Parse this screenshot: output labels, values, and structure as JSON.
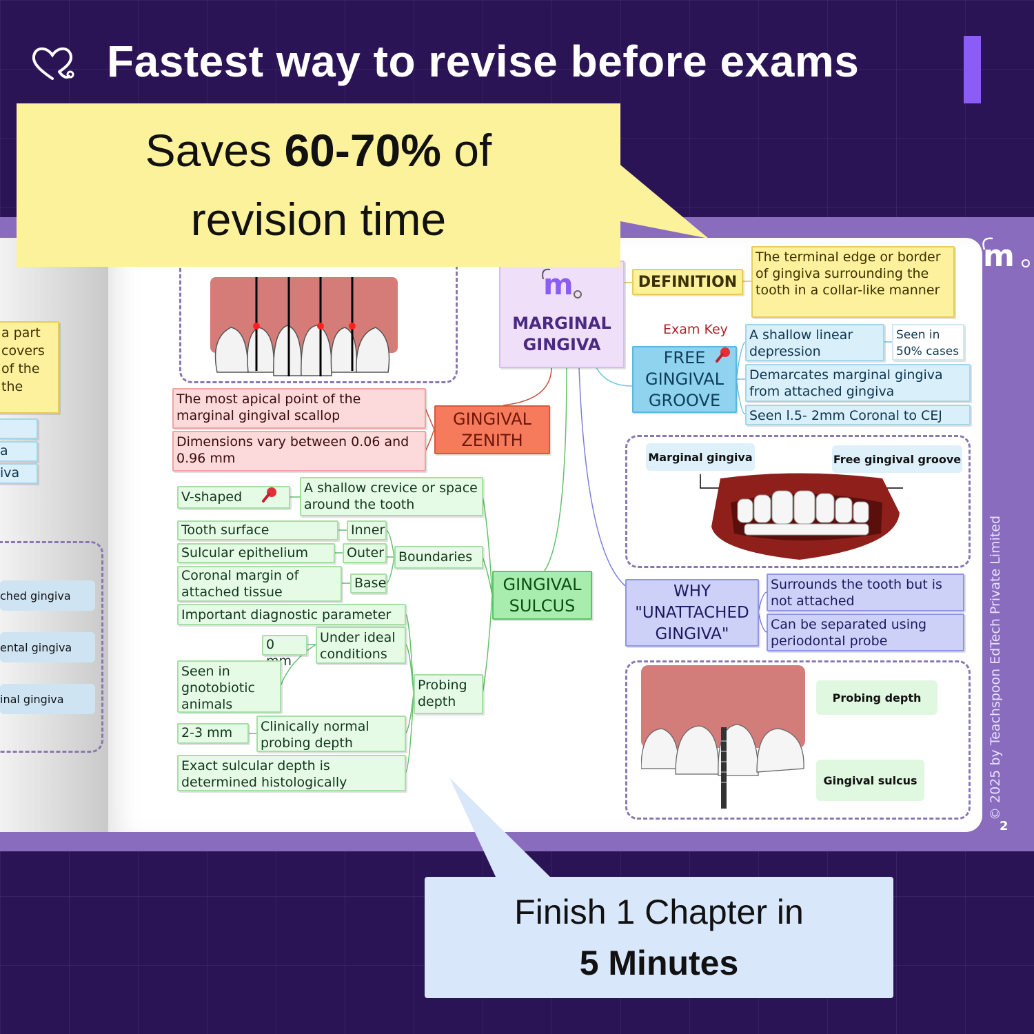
{
  "header": {
    "title": "Fastest way to revise before exams",
    "logo_icon": "heart-stethoscope-icon"
  },
  "callout_top": {
    "line1_pre": "Saves ",
    "line1_bold": "60-70%",
    "line1_post": " of",
    "line2": "revision time"
  },
  "callout_bottom": {
    "line1": "Finish 1 Chapter in",
    "line2": "5 Minutes"
  },
  "colors": {
    "background": "#2b1456",
    "band": "#8a6cbf",
    "accent_bar": "#8b5cf6",
    "callout_yellow": "#fcf29b",
    "callout_blue": "#d9e7fb"
  },
  "left_page": {
    "snippet_yellow": [
      "a part",
      "covers",
      "of the",
      "the"
    ],
    "snippet_blue": [
      "",
      "a",
      "iva"
    ],
    "list": [
      "ched gingiva",
      "ental gingiva",
      "inal gingiva"
    ]
  },
  "mindmap": {
    "center": "MARGINAL GINGIVA",
    "definition": {
      "label": "DEFINITION",
      "text": "The terminal edge or border of gingiva surrounding the tooth in a collar-like manner"
    },
    "free_groove": {
      "exam_key": "Exam Key",
      "label": "FREE GINGIVAL GROOVE",
      "items": [
        "A shallow linear depression",
        "Seen in 50% cases",
        "Demarcates marginal gingiva from attached gingiva",
        "Seen l.5- 2mm Coronal to CEJ"
      ]
    },
    "mouth_image": {
      "label_left": "Marginal gingiva",
      "label_right": "Free gingival groove"
    },
    "why": {
      "label": "WHY \"UNATTACHED GINGIVA\"",
      "items": [
        "Surrounds the tooth but is not attached",
        "Can be separated  using periodontal probe"
      ]
    },
    "tooth_image": {
      "labels": [
        "Probing depth",
        "Gingival sulcus"
      ]
    },
    "zenith": {
      "label": "GINGIVAL ZENITH",
      "items": [
        "The most apical point of the marginal gingival scallop",
        "Dimensions vary between 0.06 and 0.96 mm"
      ]
    },
    "sulcus": {
      "label": "GINGIVAL SULCUS",
      "definition": "A shallow crevice or space around the tooth",
      "v_shaped": "V-shaped",
      "boundaries": {
        "label": "Boundaries",
        "items": [
          {
            "left": "Tooth surface",
            "right": "Inner"
          },
          {
            "left": "Sulcular epithelium",
            "right": "Outer"
          },
          {
            "left": "Coronal margin of attached tissue",
            "right": "Base"
          }
        ]
      },
      "probing": {
        "label": "Probing depth",
        "important": "Important diagnostic parameter",
        "zero": "0 mm",
        "ideal": "Under ideal conditions",
        "gnoto": "Seen in gnotobiotic animals",
        "normal_value": "2-3 mm",
        "normal": "Clinically normal probing depth",
        "exact": "Exact sulcular depth is determined histologically"
      }
    }
  },
  "footer": {
    "copyright": "©  2025 by Teachspoon EdTech Private Limited",
    "page_number": "2"
  }
}
